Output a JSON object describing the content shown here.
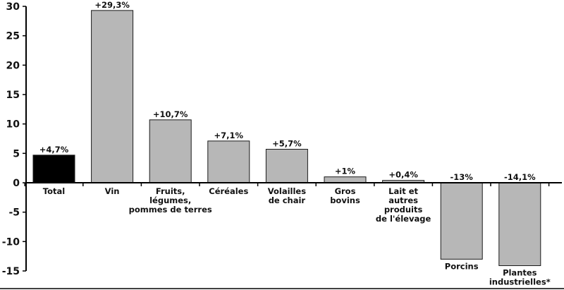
{
  "chart_data": {
    "type": "bar",
    "title": "",
    "xlabel": "",
    "ylabel": "",
    "ylim": [
      -15,
      30
    ],
    "yticks": [
      "30",
      "25",
      "20",
      "15",
      "10",
      "5",
      "0",
      "-5",
      "-10",
      "-15"
    ],
    "ytick_values": [
      30,
      25,
      20,
      15,
      10,
      5,
      0,
      -5,
      -10,
      -15
    ],
    "grid": false,
    "legend": "none",
    "categories": [
      [
        "Total"
      ],
      [
        "Vin"
      ],
      [
        "Fruits,",
        "légumes,",
        "pommes de terres"
      ],
      [
        "Céréales"
      ],
      [
        "Volailles",
        "de chair"
      ],
      [
        "Gros",
        "bovins"
      ],
      [
        "Lait et",
        "autres",
        "produits",
        "de l'élevage"
      ],
      [
        "Porcins"
      ],
      [
        "Plantes",
        "industrielles*"
      ]
    ],
    "values": [
      4.7,
      29.3,
      10.7,
      7.1,
      5.7,
      1,
      0.4,
      -13,
      -14.1
    ],
    "data_labels": [
      "+4,7%",
      "+29,3%",
      "+10,7%",
      "+7,1%",
      "+5,7%",
      "+1%",
      "+0,4%",
      "-13%",
      "-14,1%"
    ],
    "colors": {
      "highlight": "#000000",
      "bars": "#b7b7b7",
      "bar_stroke": "#1a1a1a",
      "axis": "#000000"
    }
  }
}
